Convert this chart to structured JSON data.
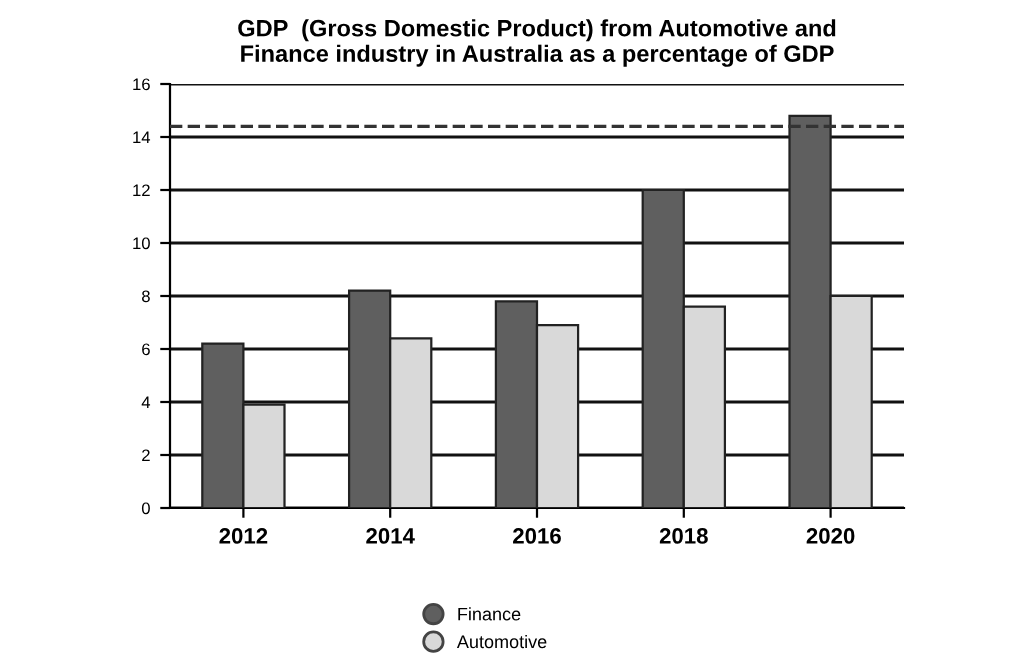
{
  "chart_data": {
    "type": "bar",
    "title": "GDP  (Gross Domestic Product) from Automotive and\nFinance industry in Australia as a percentage of GDP",
    "categories": [
      "2012",
      "2014",
      "2016",
      "2018",
      "2020"
    ],
    "series": [
      {
        "name": "Finance",
        "color": "#5f5f5f",
        "values": [
          6.2,
          8.2,
          7.8,
          12,
          14.8
        ]
      },
      {
        "name": "Automotive",
        "color": "#d9d9d9",
        "values": [
          3.9,
          6.4,
          6.9,
          7.6,
          8.0
        ]
      }
    ],
    "ylim": [
      0,
      16
    ],
    "yticks": [
      0,
      2,
      4,
      6,
      8,
      10,
      12,
      14,
      16
    ],
    "grid": "y",
    "legend": "bottom",
    "ref_lines": [
      {
        "axis": "y",
        "value": 14.4,
        "line_style": "dashed",
        "color": "#333333"
      }
    ]
  }
}
